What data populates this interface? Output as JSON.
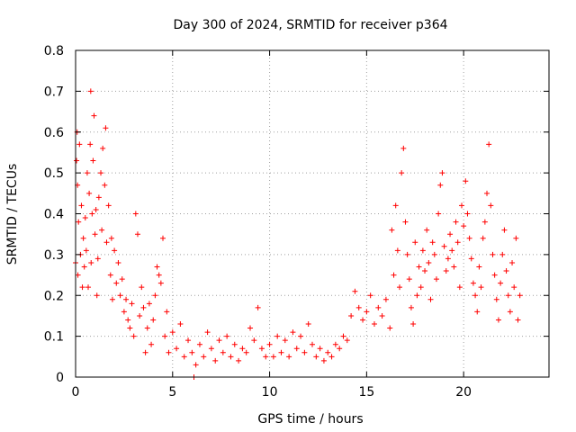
{
  "chart_data": {
    "type": "scatter",
    "title": "Day 300 of 2024, SRMTID for receiver p364",
    "xlabel": "GPS time / hours",
    "ylabel": "SRMTID / TECUs",
    "xlim": [
      0,
      24.4
    ],
    "ylim": [
      0,
      0.8
    ],
    "x_ticks": [
      0,
      5,
      10,
      15,
      20
    ],
    "x_tick_labels": [
      "0",
      "5",
      "10",
      "15",
      "20"
    ],
    "y_ticks": [
      0,
      0.1,
      0.2,
      0.3,
      0.4,
      0.5,
      0.6,
      0.7,
      0.8
    ],
    "y_tick_labels": [
      "0",
      "0.1",
      "0.2",
      "0.3",
      "0.4",
      "0.5",
      "0.6",
      "0.7",
      "0.8"
    ],
    "grid": true,
    "marker": "+",
    "color": "#ff0000",
    "series": [
      {
        "name": "SRMTID",
        "points": [
          [
            0.0,
            0.28
          ],
          [
            0.05,
            0.53
          ],
          [
            0.08,
            0.6
          ],
          [
            0.1,
            0.47
          ],
          [
            0.12,
            0.25
          ],
          [
            0.15,
            0.38
          ],
          [
            0.2,
            0.57
          ],
          [
            0.25,
            0.3
          ],
          [
            0.3,
            0.42
          ],
          [
            0.35,
            0.22
          ],
          [
            0.4,
            0.34
          ],
          [
            0.45,
            0.27
          ],
          [
            0.5,
            0.39
          ],
          [
            0.55,
            0.31
          ],
          [
            0.6,
            0.5
          ],
          [
            0.65,
            0.22
          ],
          [
            0.7,
            0.45
          ],
          [
            0.75,
            0.57
          ],
          [
            0.78,
            0.7
          ],
          [
            0.8,
            0.28
          ],
          [
            0.85,
            0.4
          ],
          [
            0.9,
            0.53
          ],
          [
            0.95,
            0.64
          ],
          [
            1.0,
            0.35
          ],
          [
            1.05,
            0.41
          ],
          [
            1.1,
            0.2
          ],
          [
            1.15,
            0.29
          ],
          [
            1.2,
            0.44
          ],
          [
            1.3,
            0.5
          ],
          [
            1.35,
            0.36
          ],
          [
            1.4,
            0.56
          ],
          [
            1.5,
            0.47
          ],
          [
            1.55,
            0.61
          ],
          [
            1.6,
            0.33
          ],
          [
            1.7,
            0.42
          ],
          [
            1.8,
            0.25
          ],
          [
            1.85,
            0.34
          ],
          [
            1.9,
            0.19
          ],
          [
            2.0,
            0.31
          ],
          [
            2.1,
            0.23
          ],
          [
            2.2,
            0.28
          ],
          [
            2.3,
            0.2
          ],
          [
            2.4,
            0.24
          ],
          [
            2.5,
            0.16
          ],
          [
            2.6,
            0.19
          ],
          [
            2.7,
            0.14
          ],
          [
            2.8,
            0.12
          ],
          [
            2.9,
            0.18
          ],
          [
            3.0,
            0.1
          ],
          [
            3.1,
            0.4
          ],
          [
            3.2,
            0.35
          ],
          [
            3.3,
            0.15
          ],
          [
            3.4,
            0.22
          ],
          [
            3.5,
            0.17
          ],
          [
            3.6,
            0.06
          ],
          [
            3.7,
            0.12
          ],
          [
            3.8,
            0.18
          ],
          [
            3.9,
            0.08
          ],
          [
            4.0,
            0.14
          ],
          [
            4.1,
            0.2
          ],
          [
            4.2,
            0.27
          ],
          [
            4.3,
            0.25
          ],
          [
            4.4,
            0.23
          ],
          [
            4.5,
            0.34
          ],
          [
            4.6,
            0.1
          ],
          [
            4.7,
            0.16
          ],
          [
            4.8,
            0.06
          ],
          [
            5.0,
            0.11
          ],
          [
            5.2,
            0.07
          ],
          [
            5.4,
            0.13
          ],
          [
            5.6,
            0.05
          ],
          [
            5.8,
            0.09
          ],
          [
            6.0,
            0.06
          ],
          [
            6.1,
            0.0
          ],
          [
            6.2,
            0.03
          ],
          [
            6.4,
            0.08
          ],
          [
            6.6,
            0.05
          ],
          [
            6.8,
            0.11
          ],
          [
            7.0,
            0.07
          ],
          [
            7.2,
            0.04
          ],
          [
            7.4,
            0.09
          ],
          [
            7.6,
            0.06
          ],
          [
            7.8,
            0.1
          ],
          [
            8.0,
            0.05
          ],
          [
            8.2,
            0.08
          ],
          [
            8.4,
            0.04
          ],
          [
            8.6,
            0.07
          ],
          [
            8.8,
            0.06
          ],
          [
            9.0,
            0.12
          ],
          [
            9.2,
            0.09
          ],
          [
            9.4,
            0.17
          ],
          [
            9.6,
            0.07
          ],
          [
            9.8,
            0.05
          ],
          [
            10.0,
            0.08
          ],
          [
            10.2,
            0.05
          ],
          [
            10.4,
            0.1
          ],
          [
            10.6,
            0.06
          ],
          [
            10.8,
            0.09
          ],
          [
            11.0,
            0.05
          ],
          [
            11.2,
            0.11
          ],
          [
            11.4,
            0.07
          ],
          [
            11.6,
            0.1
          ],
          [
            11.8,
            0.06
          ],
          [
            12.0,
            0.13
          ],
          [
            12.2,
            0.08
          ],
          [
            12.4,
            0.05
          ],
          [
            12.6,
            0.07
          ],
          [
            12.8,
            0.04
          ],
          [
            13.0,
            0.06
          ],
          [
            13.2,
            0.05
          ],
          [
            13.4,
            0.08
          ],
          [
            13.6,
            0.07
          ],
          [
            13.8,
            0.1
          ],
          [
            14.0,
            0.09
          ],
          [
            14.2,
            0.15
          ],
          [
            14.4,
            0.21
          ],
          [
            14.6,
            0.17
          ],
          [
            14.8,
            0.14
          ],
          [
            15.0,
            0.16
          ],
          [
            15.2,
            0.2
          ],
          [
            15.4,
            0.13
          ],
          [
            15.6,
            0.17
          ],
          [
            15.8,
            0.15
          ],
          [
            16.0,
            0.19
          ],
          [
            16.2,
            0.12
          ],
          [
            16.3,
            0.36
          ],
          [
            16.4,
            0.25
          ],
          [
            16.5,
            0.42
          ],
          [
            16.6,
            0.31
          ],
          [
            16.7,
            0.22
          ],
          [
            16.8,
            0.5
          ],
          [
            16.9,
            0.56
          ],
          [
            17.0,
            0.38
          ],
          [
            17.1,
            0.3
          ],
          [
            17.2,
            0.24
          ],
          [
            17.3,
            0.17
          ],
          [
            17.4,
            0.13
          ],
          [
            17.5,
            0.33
          ],
          [
            17.6,
            0.2
          ],
          [
            17.7,
            0.27
          ],
          [
            17.8,
            0.22
          ],
          [
            17.9,
            0.31
          ],
          [
            18.0,
            0.26
          ],
          [
            18.1,
            0.36
          ],
          [
            18.2,
            0.28
          ],
          [
            18.3,
            0.19
          ],
          [
            18.4,
            0.33
          ],
          [
            18.5,
            0.3
          ],
          [
            18.6,
            0.24
          ],
          [
            18.7,
            0.4
          ],
          [
            18.8,
            0.47
          ],
          [
            18.9,
            0.5
          ],
          [
            19.0,
            0.32
          ],
          [
            19.1,
            0.26
          ],
          [
            19.2,
            0.29
          ],
          [
            19.3,
            0.35
          ],
          [
            19.4,
            0.31
          ],
          [
            19.5,
            0.27
          ],
          [
            19.6,
            0.38
          ],
          [
            19.7,
            0.33
          ],
          [
            19.8,
            0.22
          ],
          [
            19.9,
            0.42
          ],
          [
            20.0,
            0.37
          ],
          [
            20.1,
            0.48
          ],
          [
            20.2,
            0.4
          ],
          [
            20.3,
            0.34
          ],
          [
            20.4,
            0.29
          ],
          [
            20.5,
            0.23
          ],
          [
            20.6,
            0.2
          ],
          [
            20.7,
            0.16
          ],
          [
            20.8,
            0.27
          ],
          [
            20.9,
            0.22
          ],
          [
            21.0,
            0.34
          ],
          [
            21.1,
            0.38
          ],
          [
            21.2,
            0.45
          ],
          [
            21.3,
            0.57
          ],
          [
            21.4,
            0.42
          ],
          [
            21.5,
            0.3
          ],
          [
            21.6,
            0.25
          ],
          [
            21.7,
            0.19
          ],
          [
            21.8,
            0.14
          ],
          [
            21.9,
            0.23
          ],
          [
            22.0,
            0.3
          ],
          [
            22.1,
            0.36
          ],
          [
            22.2,
            0.26
          ],
          [
            22.3,
            0.2
          ],
          [
            22.4,
            0.16
          ],
          [
            22.5,
            0.28
          ],
          [
            22.6,
            0.22
          ],
          [
            22.7,
            0.34
          ],
          [
            22.8,
            0.14
          ],
          [
            22.9,
            0.2
          ]
        ]
      }
    ]
  }
}
